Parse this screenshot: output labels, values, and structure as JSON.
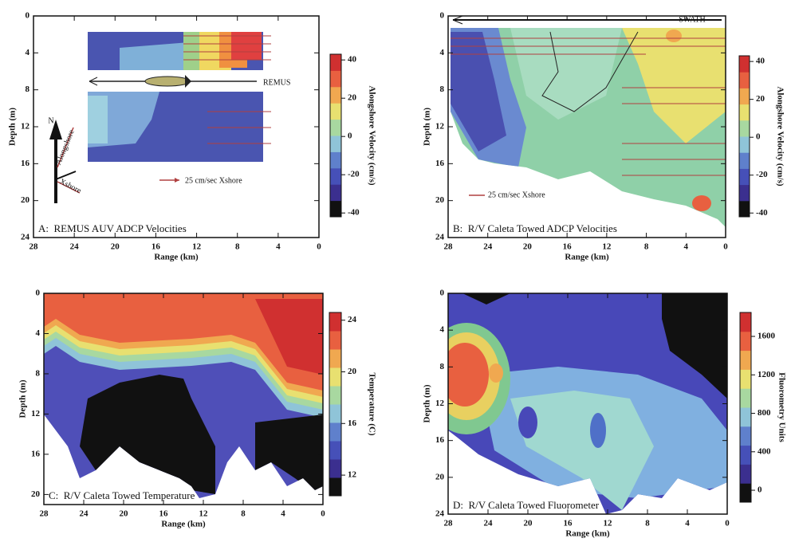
{
  "chart_data": [
    {
      "type": "contour",
      "title": "A:  REMUS AUV ADCP Velocities",
      "xlabel": "Range (km)",
      "ylabel": "Depth (m)",
      "xlim": [
        28,
        0
      ],
      "xticks": [
        28,
        24,
        20,
        16,
        12,
        8,
        4,
        0
      ],
      "ylim": [
        24,
        0
      ],
      "yticks": [
        0,
        4,
        8,
        12,
        16,
        20,
        24
      ],
      "colorbar": {
        "label": "Alongshore Velocity (cm/s)",
        "lim": [
          -42,
          43
        ],
        "ticks": [
          40,
          20,
          0,
          -20,
          -40
        ],
        "colors": [
          "#111111",
          "#3b2f8f",
          "#4650b8",
          "#5f80cc",
          "#8fc4d8",
          "#a8d8a0",
          "#e8e070",
          "#f0a850",
          "#e86040",
          "#d03030"
        ]
      },
      "annotations": [
        "REMUS",
        "25 cm/sec Xshore",
        "N",
        "Alongshore",
        "Xshore"
      ]
    },
    {
      "type": "contour",
      "title": "B:  R/V Caleta Towed ADCP Velocities",
      "xlabel": "Range (km)",
      "ylabel": "Depth (m)",
      "xlim": [
        28,
        0
      ],
      "xticks": [
        28,
        24,
        20,
        16,
        12,
        8,
        4,
        0
      ],
      "ylim": [
        24,
        0
      ],
      "yticks": [
        0,
        4,
        8,
        12,
        16,
        20,
        24
      ],
      "colorbar": {
        "label": "Alongshore Velocity (cm/s)",
        "lim": [
          -42,
          43
        ],
        "ticks": [
          40,
          20,
          0,
          -20,
          -40
        ],
        "colors": [
          "#111111",
          "#3b2f8f",
          "#4650b8",
          "#5f80cc",
          "#8fc4d8",
          "#a8d8a0",
          "#e8e070",
          "#f0a850",
          "#e86040",
          "#d03030"
        ]
      },
      "annotations": [
        "SWATH",
        "25 cm/sec Xshore"
      ]
    },
    {
      "type": "contour",
      "title": "C:  R/V Caleta Towed Temperature",
      "xlabel": "Range (km)",
      "ylabel": "Depth (m)",
      "xlim": [
        28,
        0
      ],
      "xticks": [
        28,
        24,
        20,
        16,
        12,
        8,
        4,
        0
      ],
      "ylim": [
        21,
        0
      ],
      "yticks": [
        0,
        4,
        8,
        12,
        16,
        20
      ],
      "colorbar": {
        "label": "Temperature (C)",
        "lim": [
          10.4,
          24.6
        ],
        "ticks": [
          24,
          20,
          16,
          12
        ],
        "colors": [
          "#111111",
          "#3b2f8f",
          "#4650b8",
          "#5f80cc",
          "#8fc4d8",
          "#a8d8a0",
          "#e8e070",
          "#f0a850",
          "#e86040",
          "#d03030"
        ]
      },
      "annotations": []
    },
    {
      "type": "contour",
      "title": "D:  R/V Caleta Towed Fluorometer",
      "xlabel": "Range (km)",
      "ylabel": "Depth (m)",
      "xlim": [
        28,
        0
      ],
      "xticks": [
        28,
        24,
        20,
        16,
        12,
        8,
        4,
        0
      ],
      "ylim": [
        24,
        0
      ],
      "yticks": [
        0,
        4,
        8,
        12,
        16,
        20,
        24
      ],
      "colorbar": {
        "label": "Fluorometry Units",
        "lim": [
          -124,
          1849
        ],
        "ticks": [
          1600,
          1200,
          800,
          400,
          0
        ],
        "colors": [
          "#111111",
          "#3b2f8f",
          "#4650b8",
          "#5f80cc",
          "#8fc4d8",
          "#a8d8a0",
          "#e8e070",
          "#f0a850",
          "#e86040",
          "#d03030"
        ]
      },
      "annotations": []
    }
  ]
}
